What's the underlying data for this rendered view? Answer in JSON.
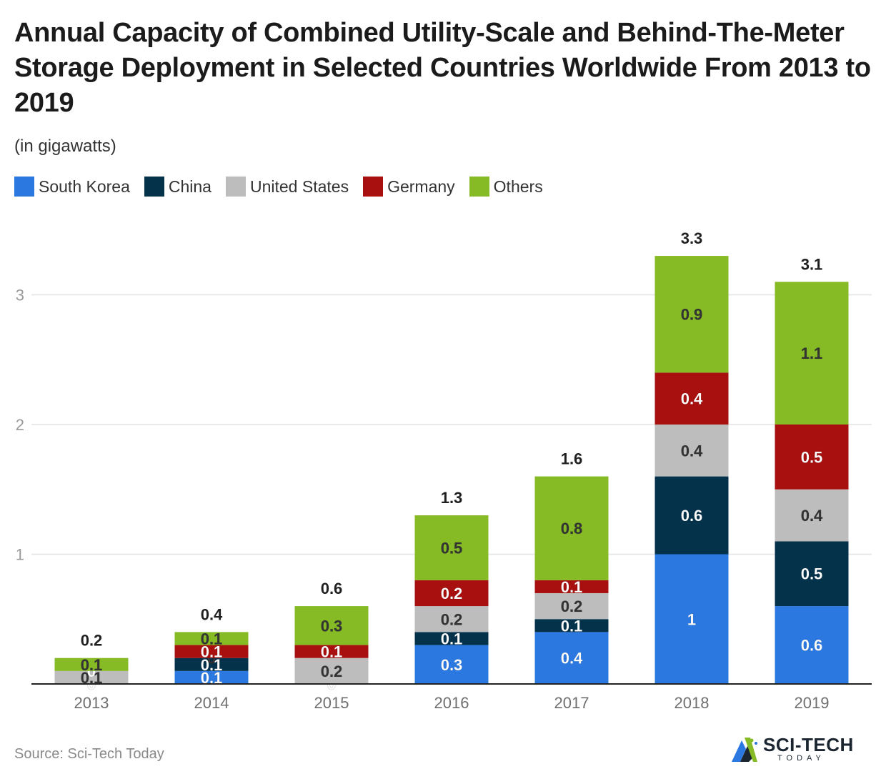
{
  "chart_data": {
    "type": "bar",
    "stacked": true,
    "title": "Annual Capacity of Combined Utility-Scale and Behind-The-Meter Storage Deployment in Selected Countries Worldwide From 2013 to 2019",
    "subtitle": "(in gigawatts)",
    "categories": [
      "2013",
      "2014",
      "2015",
      "2016",
      "2017",
      "2018",
      "2019"
    ],
    "series": [
      {
        "name": "South Korea",
        "color": "#2a78e0",
        "label_color": "#ffffff",
        "values": [
          0,
          0.1,
          0,
          0.3,
          0.4,
          1,
          0.6
        ],
        "labels": [
          "0",
          "0.1",
          "0",
          "0.3",
          "0.4",
          "1",
          "0.6"
        ]
      },
      {
        "name": "China",
        "color": "#04324b",
        "label_color": "#ffffff",
        "values": [
          0,
          0.1,
          0,
          0.1,
          0.1,
          0.6,
          0.5
        ],
        "labels": [
          "0",
          "0.1",
          "0",
          "0.1",
          "0.1",
          "0.6",
          "0.5"
        ]
      },
      {
        "name": "United States",
        "color": "#bdbdbd",
        "label_color": "#333333",
        "values": [
          0.1,
          0,
          0.2,
          0.2,
          0.2,
          0.4,
          0.4
        ],
        "labels": [
          "0.1",
          "0",
          "0.2",
          "0.2",
          "0.2",
          "0.4",
          "0.4"
        ]
      },
      {
        "name": "Germany",
        "color": "#a80f0f",
        "label_color": "#ffffff",
        "values": [
          0,
          0.1,
          0.1,
          0.2,
          0.1,
          0.4,
          0.5
        ],
        "labels": [
          "0",
          "0.1",
          "0.1",
          "0.2",
          "0.1",
          "0.4",
          "0.5"
        ]
      },
      {
        "name": "Others",
        "color": "#86bb26",
        "label_color": "#333333",
        "values": [
          0.1,
          0.1,
          0.3,
          0.5,
          0.8,
          0.9,
          1.1
        ],
        "labels": [
          "0.1",
          "0.1",
          "0.3",
          "0.5",
          "0.8",
          "0.9",
          "1.1"
        ]
      }
    ],
    "totals": [
      "0.2",
      "0.4",
      "0.6",
      "1.3",
      "1.6",
      "3.3",
      "3.1"
    ],
    "yticks": [
      "1",
      "2",
      "3"
    ],
    "ylim": [
      0,
      3.3
    ],
    "grid": true,
    "legend": "top-left"
  },
  "source": "Source: Sci-Tech Today",
  "logo": {
    "name": "SCI-TECH",
    "sub": "TODAY"
  }
}
